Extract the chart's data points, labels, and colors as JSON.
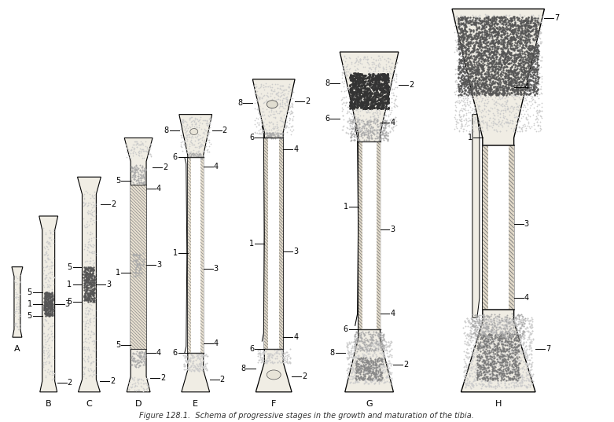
{
  "title": "Figure 128.1",
  "subtitle": "Schema of progressive stages in the growth and maturation of the tibia.",
  "labels": [
    "A",
    "B",
    "C",
    "D",
    "E",
    "F",
    "G",
    "H"
  ],
  "bg_color": "#ffffff",
  "bone_fill": "#f0ede4",
  "bone_outline": "#000000",
  "stipple_light": "#bbbbbb",
  "stipple_dark": "#444444",
  "annotation_color": "#000000"
}
